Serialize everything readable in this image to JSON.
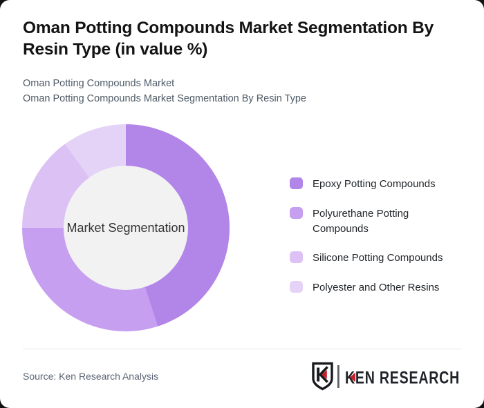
{
  "header": {
    "title": "Oman Potting Compounds Market Segmentation By Resin Type (in value %)",
    "subtitle_line1": "Oman Potting Compounds Market",
    "subtitle_line2": "Oman Potting Compounds Market Segmentation By Resin Type"
  },
  "chart_data": {
    "type": "pie",
    "variant": "donut",
    "title": "Oman Potting Compounds Market Segmentation By Resin Type (in value %)",
    "center_label": "Market Segmentation",
    "unit": "% of market value (estimated from segment angles; no numeric labels shown)",
    "categories": [
      "Epoxy Potting Compounds",
      "Polyurethane Potting Compounds",
      "Silicone Potting Compounds",
      "Polyester and Other Resins"
    ],
    "values": [
      45,
      30,
      15,
      10
    ],
    "colors": [
      "#b285e8",
      "#c69ff0",
      "#dcc2f4",
      "#e5d3f7"
    ],
    "start_angle_deg": 0,
    "direction": "clockwise",
    "inner_radius_ratio": 0.6,
    "hole_color": "#f2f2f2",
    "legend_position": "right"
  },
  "footer": {
    "source": "Source: Ken Research Analysis",
    "logo_text": "KEN RESEARCH",
    "logo_dark_color": "#202329",
    "logo_red_color": "#c8202a"
  }
}
